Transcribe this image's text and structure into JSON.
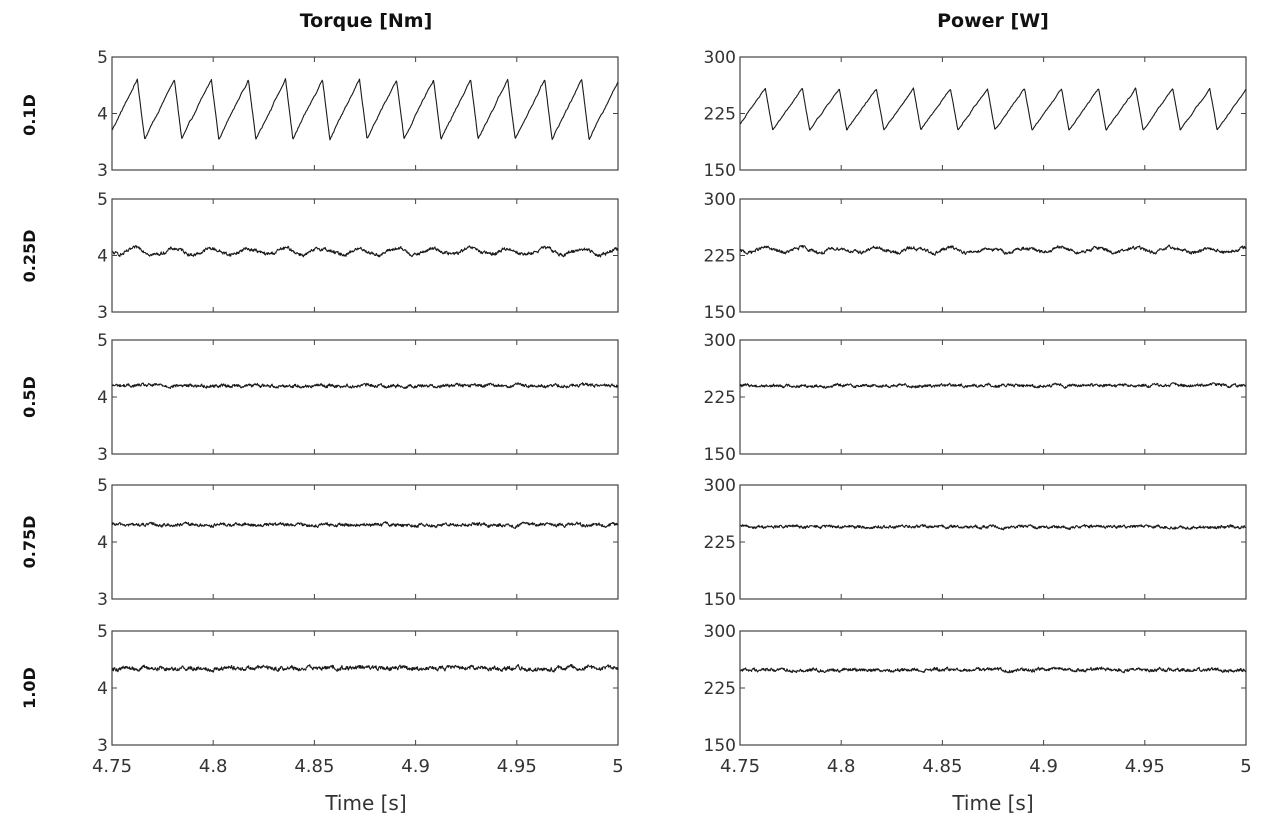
{
  "figure": {
    "column_titles": [
      "Torque [Nm]",
      "Power [W]"
    ],
    "row_labels": [
      "0.1D",
      "0.25D",
      "0.5D",
      "0.75D",
      "1.0D"
    ],
    "xlabel": "Time [s]"
  },
  "chart_data": [
    {
      "type": "line",
      "column": "Torque [Nm]",
      "row": "0.1D",
      "xlim": [
        4.75,
        5
      ],
      "ylim": [
        3,
        5
      ],
      "yticks": [
        3,
        4,
        5
      ],
      "xticks": [
        "4.75",
        "4.8",
        "4.85",
        "4.9",
        "4.95",
        "5"
      ],
      "signal": {
        "pattern": "sawtooth",
        "mean": 4.05,
        "min": 3.55,
        "max": 4.6,
        "period_s": 0.0183,
        "first_peak_s": 4.7625,
        "noise": 0.015
      }
    },
    {
      "type": "line",
      "column": "Power [W]",
      "row": "0.1D",
      "xlim": [
        4.75,
        5
      ],
      "ylim": [
        150,
        300
      ],
      "yticks": [
        150,
        225,
        300
      ],
      "xticks": [
        "4.75",
        "4.8",
        "4.85",
        "4.9",
        "4.95",
        "5"
      ],
      "signal": {
        "pattern": "sawtooth",
        "mean": 228,
        "min": 203,
        "max": 258,
        "period_s": 0.0183,
        "first_peak_s": 4.7625,
        "noise": 0.8
      }
    },
    {
      "type": "line",
      "column": "Torque [Nm]",
      "row": "0.25D",
      "xlim": [
        4.75,
        5
      ],
      "ylim": [
        3,
        5
      ],
      "yticks": [
        3,
        4,
        5
      ],
      "xticks": [
        "4.75",
        "4.8",
        "4.85",
        "4.9",
        "4.95",
        "5"
      ],
      "signal": {
        "pattern": "wavy",
        "mean": 4.07,
        "amplitude": 0.05,
        "period_s": 0.0183,
        "noise": 0.025
      }
    },
    {
      "type": "line",
      "column": "Power [W]",
      "row": "0.25D",
      "xlim": [
        4.75,
        5
      ],
      "ylim": [
        150,
        300
      ],
      "yticks": [
        150,
        225,
        300
      ],
      "xticks": [
        "4.75",
        "4.8",
        "4.85",
        "4.9",
        "4.95",
        "5"
      ],
      "signal": {
        "pattern": "wavy",
        "mean": 232,
        "amplitude": 3,
        "period_s": 0.0183,
        "noise": 1.8
      }
    },
    {
      "type": "line",
      "column": "Torque [Nm]",
      "row": "0.5D",
      "xlim": [
        4.75,
        5
      ],
      "ylim": [
        3,
        5
      ],
      "yticks": [
        3,
        4,
        5
      ],
      "xticks": [
        "4.75",
        "4.8",
        "4.85",
        "4.9",
        "4.95",
        "5"
      ],
      "signal": {
        "pattern": "noise",
        "mean": 4.2,
        "amplitude": 0.0,
        "period_s": 0.0183,
        "noise": 0.022
      }
    },
    {
      "type": "line",
      "column": "Power [W]",
      "row": "0.5D",
      "xlim": [
        4.75,
        5
      ],
      "ylim": [
        150,
        300
      ],
      "yticks": [
        150,
        225,
        300
      ],
      "xticks": [
        "4.75",
        "4.8",
        "4.85",
        "4.9",
        "4.95",
        "5"
      ],
      "signal": {
        "pattern": "noise",
        "mean": 240,
        "amplitude": 0.0,
        "period_s": 0.0183,
        "noise": 1.5
      }
    },
    {
      "type": "line",
      "column": "Torque [Nm]",
      "row": "0.75D",
      "xlim": [
        4.75,
        5
      ],
      "ylim": [
        3,
        5
      ],
      "yticks": [
        3,
        4,
        5
      ],
      "xticks": [
        "4.75",
        "4.8",
        "4.85",
        "4.9",
        "4.95",
        "5"
      ],
      "signal": {
        "pattern": "noise",
        "mean": 4.3,
        "amplitude": 0.0,
        "period_s": 0.0183,
        "noise": 0.022
      }
    },
    {
      "type": "line",
      "column": "Power [W]",
      "row": "0.75D",
      "xlim": [
        4.75,
        5
      ],
      "ylim": [
        150,
        300
      ],
      "yticks": [
        150,
        225,
        300
      ],
      "xticks": [
        "4.75",
        "4.8",
        "4.85",
        "4.9",
        "4.95",
        "5"
      ],
      "signal": {
        "pattern": "noise",
        "mean": 245,
        "amplitude": 0.0,
        "period_s": 0.0183,
        "noise": 1.5
      }
    },
    {
      "type": "line",
      "column": "Torque [Nm]",
      "row": "1.0D",
      "xlim": [
        4.75,
        5
      ],
      "ylim": [
        3,
        5
      ],
      "yticks": [
        3,
        4,
        5
      ],
      "xticks": [
        "4.75",
        "4.8",
        "4.85",
        "4.9",
        "4.95",
        "5"
      ],
      "signal": {
        "pattern": "noise",
        "mean": 4.35,
        "amplitude": 0.0,
        "period_s": 0.0183,
        "noise": 0.028
      }
    },
    {
      "type": "line",
      "column": "Power [W]",
      "row": "1.0D",
      "xlim": [
        4.75,
        5
      ],
      "ylim": [
        150,
        300
      ],
      "yticks": [
        150,
        225,
        300
      ],
      "xticks": [
        "4.75",
        "4.8",
        "4.85",
        "4.9",
        "4.95",
        "5"
      ],
      "signal": {
        "pattern": "noise",
        "mean": 249,
        "amplitude": 0.0,
        "period_s": 0.0183,
        "noise": 1.7
      }
    }
  ]
}
